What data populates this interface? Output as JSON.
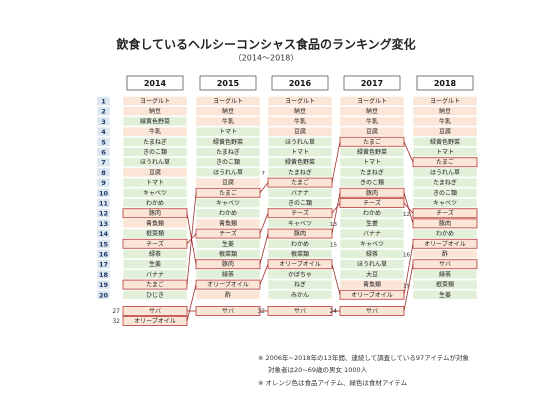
{
  "title": "飲食しているヘルシーコンシャス食品のランキング変化",
  "subtitle": "（2014～2018）",
  "ranks": [
    1,
    2,
    3,
    4,
    5,
    6,
    7,
    8,
    9,
    10,
    11,
    12,
    13,
    14,
    15,
    16,
    17,
    18,
    19,
    20
  ],
  "colors": {
    "food": "#fbe5d6",
    "ingredient": "#e2f0d9",
    "highlight": "#c0504d",
    "line": "#a0302c"
  },
  "food_items": [
    "ヨーグルト",
    "納豆",
    "牛乳",
    "豆腐",
    "たまご",
    "豚肉",
    "チーズ",
    "オリーブオイル",
    "酢",
    "サバ",
    "青魚類"
  ],
  "highlighted": [
    "たまご",
    "豚肉",
    "チーズ",
    "オリーブオイル",
    "サバ"
  ],
  "columns": [
    {
      "year": "2014",
      "items": [
        {
          "label": "ヨーグルト"
        },
        {
          "label": "納豆"
        },
        {
          "label": "緑黄色野菜"
        },
        {
          "label": "牛乳"
        },
        {
          "label": "たまねぎ"
        },
        {
          "label": "きのこ類"
        },
        {
          "label": "ほうれん草"
        },
        {
          "label": "豆腐"
        },
        {
          "label": "トマト"
        },
        {
          "label": "キャベツ"
        },
        {
          "label": "わかめ"
        },
        {
          "label": "豚肉"
        },
        {
          "label": "青魚類"
        },
        {
          "label": "根菜類"
        },
        {
          "label": "チーズ"
        },
        {
          "label": "緑茶"
        },
        {
          "label": "生姜"
        },
        {
          "label": "バナナ"
        },
        {
          "label": "たまご"
        },
        {
          "label": "ひじき"
        }
      ],
      "extra": [
        {
          "rank": 27,
          "label": "サバ"
        },
        {
          "rank": 32,
          "label": "オリーブオイル"
        }
      ]
    },
    {
      "year": "2015",
      "items": [
        {
          "label": "ヨーグルト"
        },
        {
          "label": "納豆"
        },
        {
          "label": "牛乳"
        },
        {
          "label": "トマト"
        },
        {
          "label": "緑黄色野菜"
        },
        {
          "label": "たまねぎ"
        },
        {
          "label": "きのこ類"
        },
        {
          "label": "ほうれん草"
        },
        {
          "label": "豆腐"
        },
        {
          "label": "たまご"
        },
        {
          "label": "キャベツ"
        },
        {
          "label": "わかめ"
        },
        {
          "label": "青魚類"
        },
        {
          "label": "チーズ"
        },
        {
          "label": "生姜"
        },
        {
          "label": "根菜類"
        },
        {
          "label": "豚肉"
        },
        {
          "label": "緑茶"
        },
        {
          "label": "オリーブオイル"
        },
        {
          "label": "酢"
        }
      ],
      "extra": [
        {
          "label": "サバ"
        }
      ]
    },
    {
      "year": "2016",
      "items": [
        {
          "label": "ヨーグルト"
        },
        {
          "label": "納豆"
        },
        {
          "label": "牛乳"
        },
        {
          "label": "豆腐"
        },
        {
          "label": "ほうれん草"
        },
        {
          "label": "トマト"
        },
        {
          "label": "緑黄色野菜"
        },
        {
          "label": "たまねぎ"
        },
        {
          "label": "たまご",
          "note": "7"
        },
        {
          "label": "バナナ"
        },
        {
          "label": "きのこ類"
        },
        {
          "label": "チーズ"
        },
        {
          "label": "キャベツ"
        },
        {
          "label": "豚肉"
        },
        {
          "label": "わかめ"
        },
        {
          "label": "根菜類"
        },
        {
          "label": "オリーブオイル"
        },
        {
          "label": "かぼちゃ"
        },
        {
          "label": "ねぎ"
        },
        {
          "label": "みかん"
        }
      ],
      "extra": [
        {
          "rank": 32,
          "label": "サバ"
        }
      ]
    },
    {
      "year": "2017",
      "items": [
        {
          "label": "ヨーグルト"
        },
        {
          "label": "納豆"
        },
        {
          "label": "牛乳"
        },
        {
          "label": "豆腐"
        },
        {
          "label": "たまご"
        },
        {
          "label": "緑黄色野菜"
        },
        {
          "label": "トマト"
        },
        {
          "label": "たまねぎ"
        },
        {
          "label": "きのこ類"
        },
        {
          "label": "豚肉"
        },
        {
          "label": "チーズ"
        },
        {
          "label": "わかめ"
        },
        {
          "label": "生姜"
        },
        {
          "label": "バナナ",
          "note": "13"
        },
        {
          "label": "キャベツ"
        },
        {
          "label": "緑茶",
          "note": "15"
        },
        {
          "label": "ほうれん草"
        },
        {
          "label": "大豆"
        },
        {
          "label": "青魚類"
        },
        {
          "label": "オリーブオイル"
        }
      ],
      "extra": [
        {
          "rank": 24,
          "label": "サバ"
        }
      ]
    },
    {
      "year": "2018",
      "items": [
        {
          "label": "ヨーグルト"
        },
        {
          "label": "納豆"
        },
        {
          "label": "牛乳"
        },
        {
          "label": "豆腐"
        },
        {
          "label": "緑黄色野菜"
        },
        {
          "label": "トマト"
        },
        {
          "label": "たまご"
        },
        {
          "label": "ほうれん草"
        },
        {
          "label": "たまねぎ"
        },
        {
          "label": "きのこ類"
        },
        {
          "label": "キャベツ"
        },
        {
          "label": "チーズ"
        },
        {
          "label": "豚肉",
          "note": "12"
        },
        {
          "label": "わかめ"
        },
        {
          "label": "オリーブオイル"
        },
        {
          "label": "酢"
        },
        {
          "label": "サバ",
          "note": "16"
        },
        {
          "label": "緑茶"
        },
        {
          "label": "根菜類"
        },
        {
          "label": "生姜",
          "note": "19"
        }
      ],
      "extra": []
    }
  ],
  "footnotes": [
    "※ 2006年~2018年の13年間、連続して調査している97アイテムが対象",
    "対象者は20~69歳の男女 1000人",
    "※ オレンジ色は食品アイテム、緑色は食材アイテム"
  ]
}
